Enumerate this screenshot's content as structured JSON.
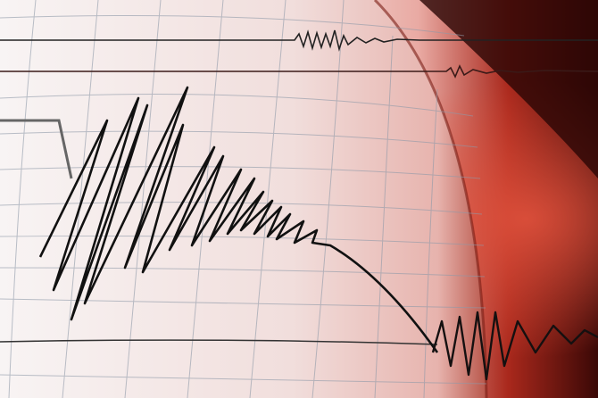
{
  "image": {
    "subject": "seismograph-recording",
    "colors": {
      "paper_light": "#f6f1f0",
      "paper_pink": "#efc9c6",
      "glow_red": "#c0301f",
      "dark_red": "#2a0504",
      "trace": "#111111",
      "grid": "#8e99a8"
    }
  }
}
